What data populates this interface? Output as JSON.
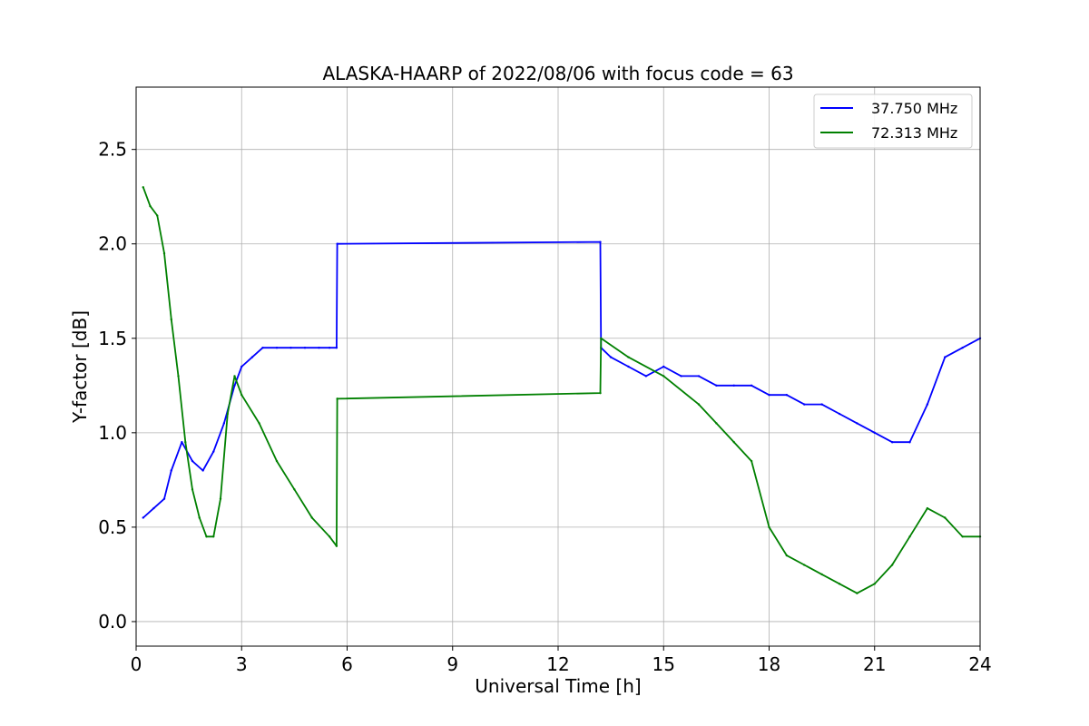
{
  "chart_data": {
    "type": "line",
    "title": "ALASKA-HAARP of 2022/08/06 with focus code = 63",
    "xlabel": "Universal Time [h]",
    "ylabel": "Y-factor [dB]",
    "xlim": [
      0,
      24
    ],
    "ylim": [
      -0.13,
      2.83
    ],
    "xticks": [
      0,
      3,
      6,
      9,
      12,
      15,
      18,
      21,
      24
    ],
    "yticks": [
      0.0,
      0.5,
      1.0,
      1.5,
      2.0,
      2.5
    ],
    "xtick_labels": [
      "0",
      "3",
      "6",
      "9",
      "12",
      "15",
      "18",
      "21",
      "24"
    ],
    "ytick_labels": [
      "0.0",
      "0.5",
      "1.0",
      "1.5",
      "2.0",
      "2.5"
    ],
    "grid": true,
    "legend_position": "top-right",
    "series": [
      {
        "name": "37.750 MHz",
        "color": "#0000ff",
        "x": [
          0.2,
          0.5,
          0.8,
          1.0,
          1.3,
          1.6,
          1.9,
          2.2,
          2.5,
          2.8,
          3.0,
          3.3,
          3.6,
          4.0,
          4.4,
          4.8,
          5.2,
          5.5,
          5.7,
          5.72,
          13.2,
          13.22,
          13.5,
          14.0,
          14.5,
          15.0,
          15.5,
          16.0,
          16.5,
          17.0,
          17.5,
          18.0,
          18.5,
          19.0,
          19.5,
          20.0,
          20.5,
          21.0,
          21.5,
          22.0,
          22.5,
          23.0,
          23.5,
          24.0
        ],
        "y": [
          0.55,
          0.6,
          0.65,
          0.8,
          0.95,
          0.85,
          0.8,
          0.9,
          1.05,
          1.25,
          1.35,
          1.4,
          1.45,
          1.45,
          1.45,
          1.45,
          1.45,
          1.45,
          1.45,
          2.0,
          2.01,
          1.45,
          1.4,
          1.35,
          1.3,
          1.35,
          1.3,
          1.3,
          1.25,
          1.25,
          1.25,
          1.2,
          1.2,
          1.15,
          1.15,
          1.1,
          1.05,
          1.0,
          0.95,
          0.95,
          1.15,
          1.4,
          1.45,
          1.5
        ]
      },
      {
        "name": "72.313 MHz",
        "color": "#008000",
        "x": [
          0.2,
          0.4,
          0.6,
          0.8,
          1.0,
          1.2,
          1.4,
          1.6,
          1.8,
          2.0,
          2.2,
          2.4,
          2.6,
          2.8,
          3.0,
          3.5,
          4.0,
          4.5,
          5.0,
          5.5,
          5.7,
          5.72,
          13.2,
          13.22,
          14.0,
          15.0,
          16.0,
          16.5,
          17.0,
          17.5,
          18.0,
          18.5,
          19.0,
          19.5,
          20.0,
          20.5,
          21.0,
          21.5,
          22.0,
          22.5,
          23.0,
          23.5,
          24.0
        ],
        "y": [
          2.3,
          2.2,
          2.15,
          1.95,
          1.6,
          1.3,
          0.95,
          0.7,
          0.55,
          0.45,
          0.45,
          0.65,
          1.1,
          1.3,
          1.2,
          1.05,
          0.85,
          0.7,
          0.55,
          0.45,
          0.4,
          1.18,
          1.21,
          1.5,
          1.4,
          1.3,
          1.15,
          1.05,
          0.95,
          0.85,
          0.5,
          0.35,
          0.3,
          0.25,
          0.2,
          0.15,
          0.2,
          0.3,
          0.45,
          0.6,
          0.55,
          0.45,
          0.45
        ]
      }
    ]
  }
}
